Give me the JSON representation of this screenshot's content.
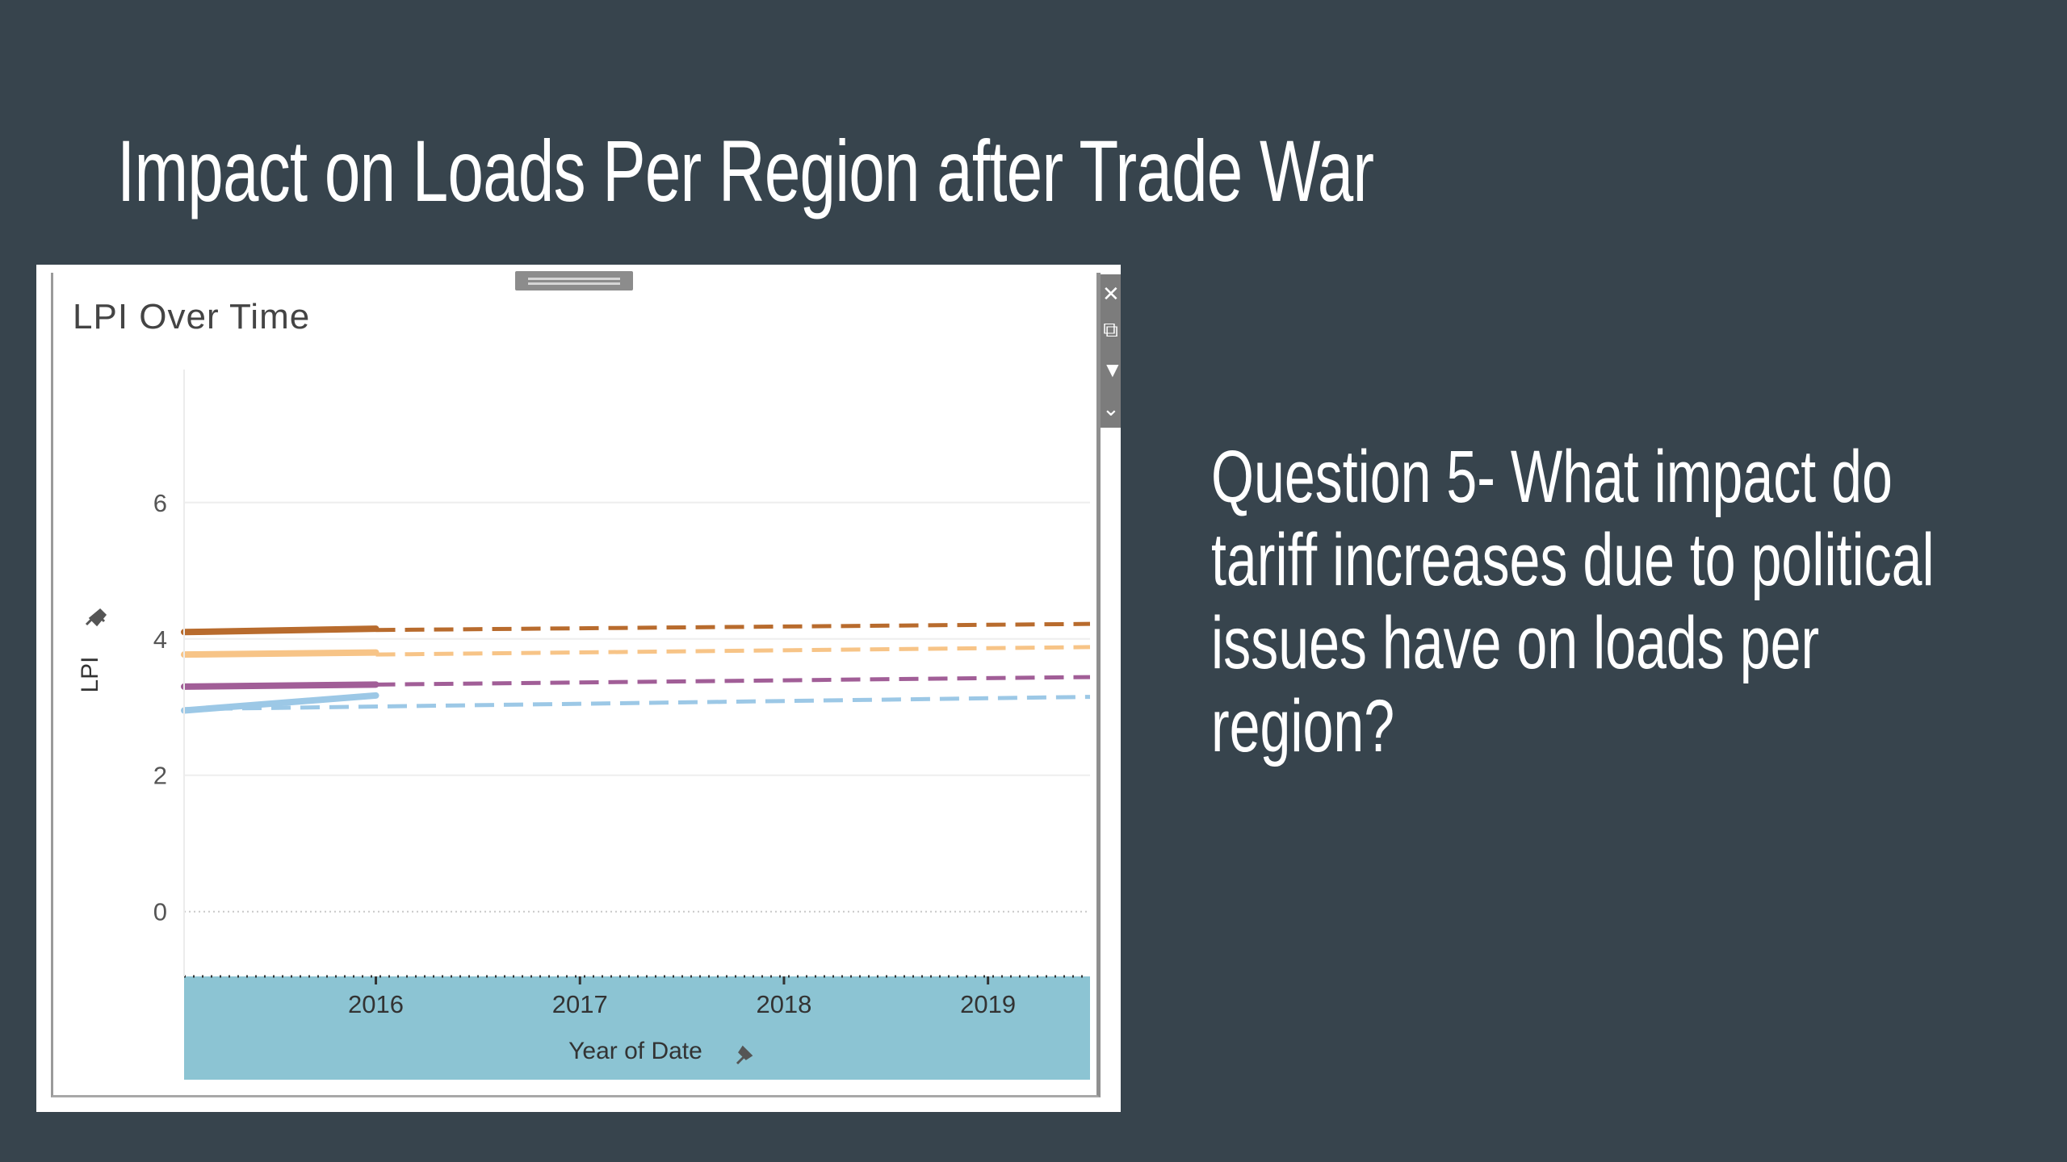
{
  "slide": {
    "title": "Impact on Loads Per Region after Trade War",
    "question": "Question 5- What impact do tariff increases due to political issues have on loads per region?"
  },
  "colors": {
    "background": "#37444d",
    "axis_band": "#8cc4d3"
  },
  "toolbar_icons": [
    "close-icon",
    "expand-icon",
    "filter-icon",
    "more-options-icon"
  ],
  "chart_data": {
    "type": "line",
    "title": "LPI Over Time",
    "xlabel": "Year of Date",
    "ylabel": "LPI",
    "x_ticks": [
      "2016",
      "2017",
      "2018",
      "2019"
    ],
    "y_ticks": [
      "0",
      "2",
      "4",
      "6"
    ],
    "xlim": [
      2015.06,
      2019.5
    ],
    "ylim": [
      -0.95,
      7.95
    ],
    "grid": true,
    "legend": "none",
    "series": [
      {
        "color": "#b86b2d",
        "actual": [
          [
            2015.06,
            4.1
          ],
          [
            2016.0,
            4.15
          ]
        ],
        "forecast": [
          [
            2016.0,
            4.13
          ],
          [
            2019.5,
            4.22
          ]
        ]
      },
      {
        "color": "#f7c487",
        "actual": [
          [
            2015.06,
            3.77
          ],
          [
            2016.0,
            3.8
          ]
        ],
        "forecast": [
          [
            2016.0,
            3.77
          ],
          [
            2019.5,
            3.88
          ]
        ]
      },
      {
        "color": "#a15e97",
        "actual": [
          [
            2015.06,
            3.3
          ],
          [
            2016.0,
            3.33
          ]
        ],
        "forecast": [
          [
            2016.0,
            3.33
          ],
          [
            2019.5,
            3.44
          ]
        ]
      },
      {
        "color": "#9cc8e6",
        "actual": [
          [
            2015.06,
            2.95
          ],
          [
            2016.0,
            3.17
          ]
        ],
        "forecast": [
          [
            2015.06,
            2.97
          ],
          [
            2019.5,
            3.15
          ]
        ]
      }
    ]
  }
}
